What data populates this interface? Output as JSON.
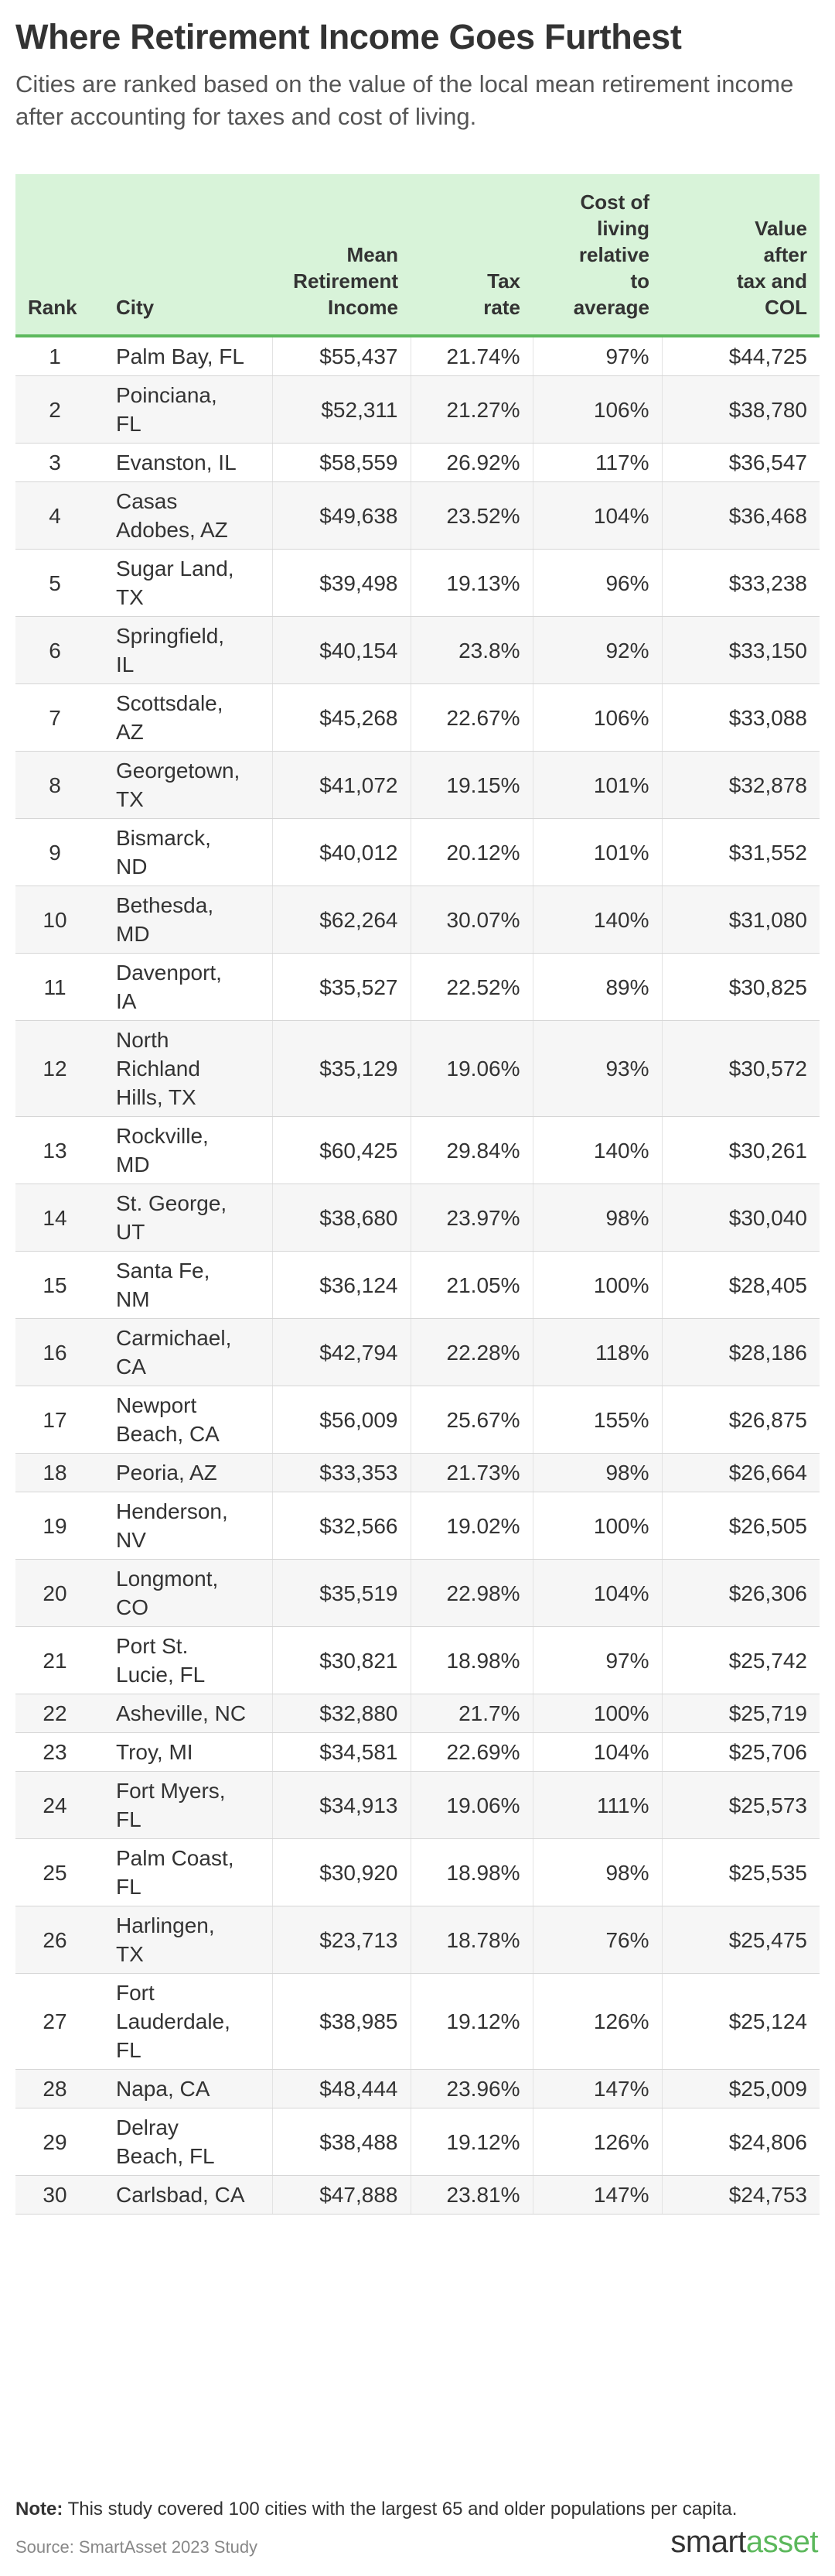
{
  "title": "Where Retirement Income Goes Furthest",
  "subtitle": "Cities are ranked based on the value of the local mean retirement income after accounting for taxes and cost of living.",
  "note_label": "Note:",
  "note_text": "This study covered 100 cities with the largest 65 and older populations per capita.",
  "source": "Source: SmartAsset 2023 Study",
  "logo": {
    "part1": "smart",
    "part2": "asset"
  },
  "colors": {
    "header_bg": "#d8f3d9",
    "accent": "#5cb85c",
    "row_alt": "#f6f6f6"
  },
  "chart_data": {
    "type": "table",
    "columns": [
      [
        "Rank"
      ],
      [
        "City"
      ],
      [
        "Mean",
        "Retirement",
        "Income"
      ],
      [
        "Tax",
        "rate"
      ],
      [
        "Cost of",
        "living",
        "relative",
        "to",
        "average"
      ],
      [
        "Value",
        "after",
        "tax and",
        "COL"
      ]
    ],
    "rows": [
      {
        "rank": "1",
        "city": [
          "Palm Bay, FL"
        ],
        "income": "$55,437",
        "tax": "21.74%",
        "col": "97%",
        "value": "$44,725"
      },
      {
        "rank": "2",
        "city": [
          "Poinciana,",
          "FL"
        ],
        "income": "$52,311",
        "tax": "21.27%",
        "col": "106%",
        "value": "$38,780"
      },
      {
        "rank": "3",
        "city": [
          "Evanston, IL"
        ],
        "income": "$58,559",
        "tax": "26.92%",
        "col": "117%",
        "value": "$36,547"
      },
      {
        "rank": "4",
        "city": [
          "Casas",
          "Adobes, AZ"
        ],
        "income": "$49,638",
        "tax": "23.52%",
        "col": "104%",
        "value": "$36,468"
      },
      {
        "rank": "5",
        "city": [
          "Sugar Land,",
          "TX"
        ],
        "income": "$39,498",
        "tax": "19.13%",
        "col": "96%",
        "value": "$33,238"
      },
      {
        "rank": "6",
        "city": [
          "Springfield,",
          "IL"
        ],
        "income": "$40,154",
        "tax": "23.8%",
        "col": "92%",
        "value": "$33,150"
      },
      {
        "rank": "7",
        "city": [
          "Scottsdale,",
          "AZ"
        ],
        "income": "$45,268",
        "tax": "22.67%",
        "col": "106%",
        "value": "$33,088"
      },
      {
        "rank": "8",
        "city": [
          "Georgetown,",
          "TX"
        ],
        "income": "$41,072",
        "tax": "19.15%",
        "col": "101%",
        "value": "$32,878"
      },
      {
        "rank": "9",
        "city": [
          "Bismarck,",
          "ND"
        ],
        "income": "$40,012",
        "tax": "20.12%",
        "col": "101%",
        "value": "$31,552"
      },
      {
        "rank": "10",
        "city": [
          "Bethesda,",
          "MD"
        ],
        "income": "$62,264",
        "tax": "30.07%",
        "col": "140%",
        "value": "$31,080"
      },
      {
        "rank": "11",
        "city": [
          "Davenport,",
          "IA"
        ],
        "income": "$35,527",
        "tax": "22.52%",
        "col": "89%",
        "value": "$30,825"
      },
      {
        "rank": "12",
        "city": [
          "North",
          "Richland",
          "Hills, TX"
        ],
        "income": "$35,129",
        "tax": "19.06%",
        "col": "93%",
        "value": "$30,572"
      },
      {
        "rank": "13",
        "city": [
          "Rockville,",
          "MD"
        ],
        "income": "$60,425",
        "tax": "29.84%",
        "col": "140%",
        "value": "$30,261"
      },
      {
        "rank": "14",
        "city": [
          "St. George,",
          "UT"
        ],
        "income": "$38,680",
        "tax": "23.97%",
        "col": "98%",
        "value": "$30,040"
      },
      {
        "rank": "15",
        "city": [
          "Santa Fe,",
          "NM"
        ],
        "income": "$36,124",
        "tax": "21.05%",
        "col": "100%",
        "value": "$28,405"
      },
      {
        "rank": "16",
        "city": [
          "Carmichael,",
          "CA"
        ],
        "income": "$42,794",
        "tax": "22.28%",
        "col": "118%",
        "value": "$28,186"
      },
      {
        "rank": "17",
        "city": [
          "Newport",
          "Beach, CA"
        ],
        "income": "$56,009",
        "tax": "25.67%",
        "col": "155%",
        "value": "$26,875"
      },
      {
        "rank": "18",
        "city": [
          "Peoria, AZ"
        ],
        "income": "$33,353",
        "tax": "21.73%",
        "col": "98%",
        "value": "$26,664"
      },
      {
        "rank": "19",
        "city": [
          "Henderson,",
          "NV"
        ],
        "income": "$32,566",
        "tax": "19.02%",
        "col": "100%",
        "value": "$26,505"
      },
      {
        "rank": "20",
        "city": [
          "Longmont,",
          "CO"
        ],
        "income": "$35,519",
        "tax": "22.98%",
        "col": "104%",
        "value": "$26,306"
      },
      {
        "rank": "21",
        "city": [
          "Port St.",
          "Lucie, FL"
        ],
        "income": "$30,821",
        "tax": "18.98%",
        "col": "97%",
        "value": "$25,742"
      },
      {
        "rank": "22",
        "city": [
          "Asheville, NC"
        ],
        "income": "$32,880",
        "tax": "21.7%",
        "col": "100%",
        "value": "$25,719"
      },
      {
        "rank": "23",
        "city": [
          "Troy, MI"
        ],
        "income": "$34,581",
        "tax": "22.69%",
        "col": "104%",
        "value": "$25,706"
      },
      {
        "rank": "24",
        "city": [
          "Fort Myers,",
          "FL"
        ],
        "income": "$34,913",
        "tax": "19.06%",
        "col": "111%",
        "value": "$25,573"
      },
      {
        "rank": "25",
        "city": [
          "Palm Coast,",
          "FL"
        ],
        "income": "$30,920",
        "tax": "18.98%",
        "col": "98%",
        "value": "$25,535"
      },
      {
        "rank": "26",
        "city": [
          "Harlingen,",
          "TX"
        ],
        "income": "$23,713",
        "tax": "18.78%",
        "col": "76%",
        "value": "$25,475"
      },
      {
        "rank": "27",
        "city": [
          "Fort",
          "Lauderdale,",
          "FL"
        ],
        "income": "$38,985",
        "tax": "19.12%",
        "col": "126%",
        "value": "$25,124"
      },
      {
        "rank": "28",
        "city": [
          "Napa, CA"
        ],
        "income": "$48,444",
        "tax": "23.96%",
        "col": "147%",
        "value": "$25,009"
      },
      {
        "rank": "29",
        "city": [
          "Delray",
          "Beach, FL"
        ],
        "income": "$38,488",
        "tax": "19.12%",
        "col": "126%",
        "value": "$24,806"
      },
      {
        "rank": "30",
        "city": [
          "Carlsbad, CA"
        ],
        "income": "$47,888",
        "tax": "23.81%",
        "col": "147%",
        "value": "$24,753"
      }
    ]
  }
}
